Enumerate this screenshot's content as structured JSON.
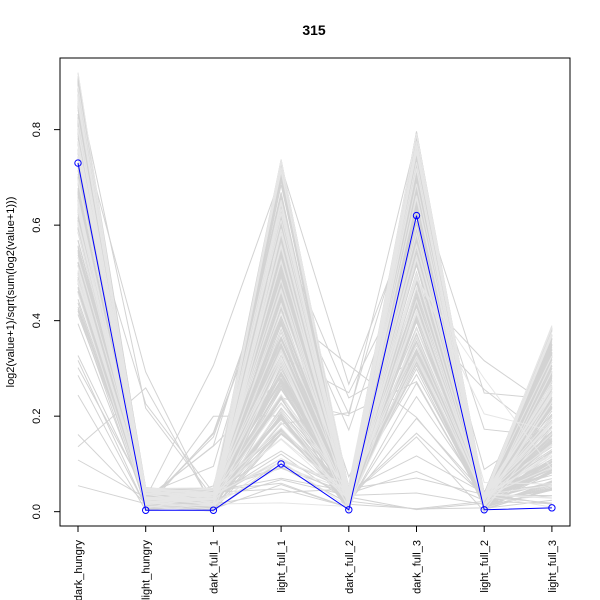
{
  "chart_data": {
    "type": "line",
    "title": "315",
    "xlabel": "",
    "ylabel": "log2(value+1)/sqrt(sum(log2(value+1)))",
    "categories": [
      "dark_hungry",
      "light_hungry",
      "dark_full_1",
      "light_full_1",
      "dark_full_2",
      "dark_full_3",
      "light_full_2",
      "light_full_3"
    ],
    "ylim": [
      -0.03,
      0.95
    ],
    "yticks": [
      0.0,
      0.2,
      0.4,
      0.6,
      0.8
    ],
    "ytick_labels": [
      "0.0",
      "0.2",
      "0.4",
      "0.6",
      "0.8"
    ],
    "grid": false,
    "highlight_color": "#0000ff",
    "background_color": "#d3d3d3",
    "series": [
      {
        "values": [
          0.73,
          0.003,
          0.003,
          0.1,
          0.004,
          0.62,
          0.004,
          0.008
        ]
      }
    ]
  }
}
